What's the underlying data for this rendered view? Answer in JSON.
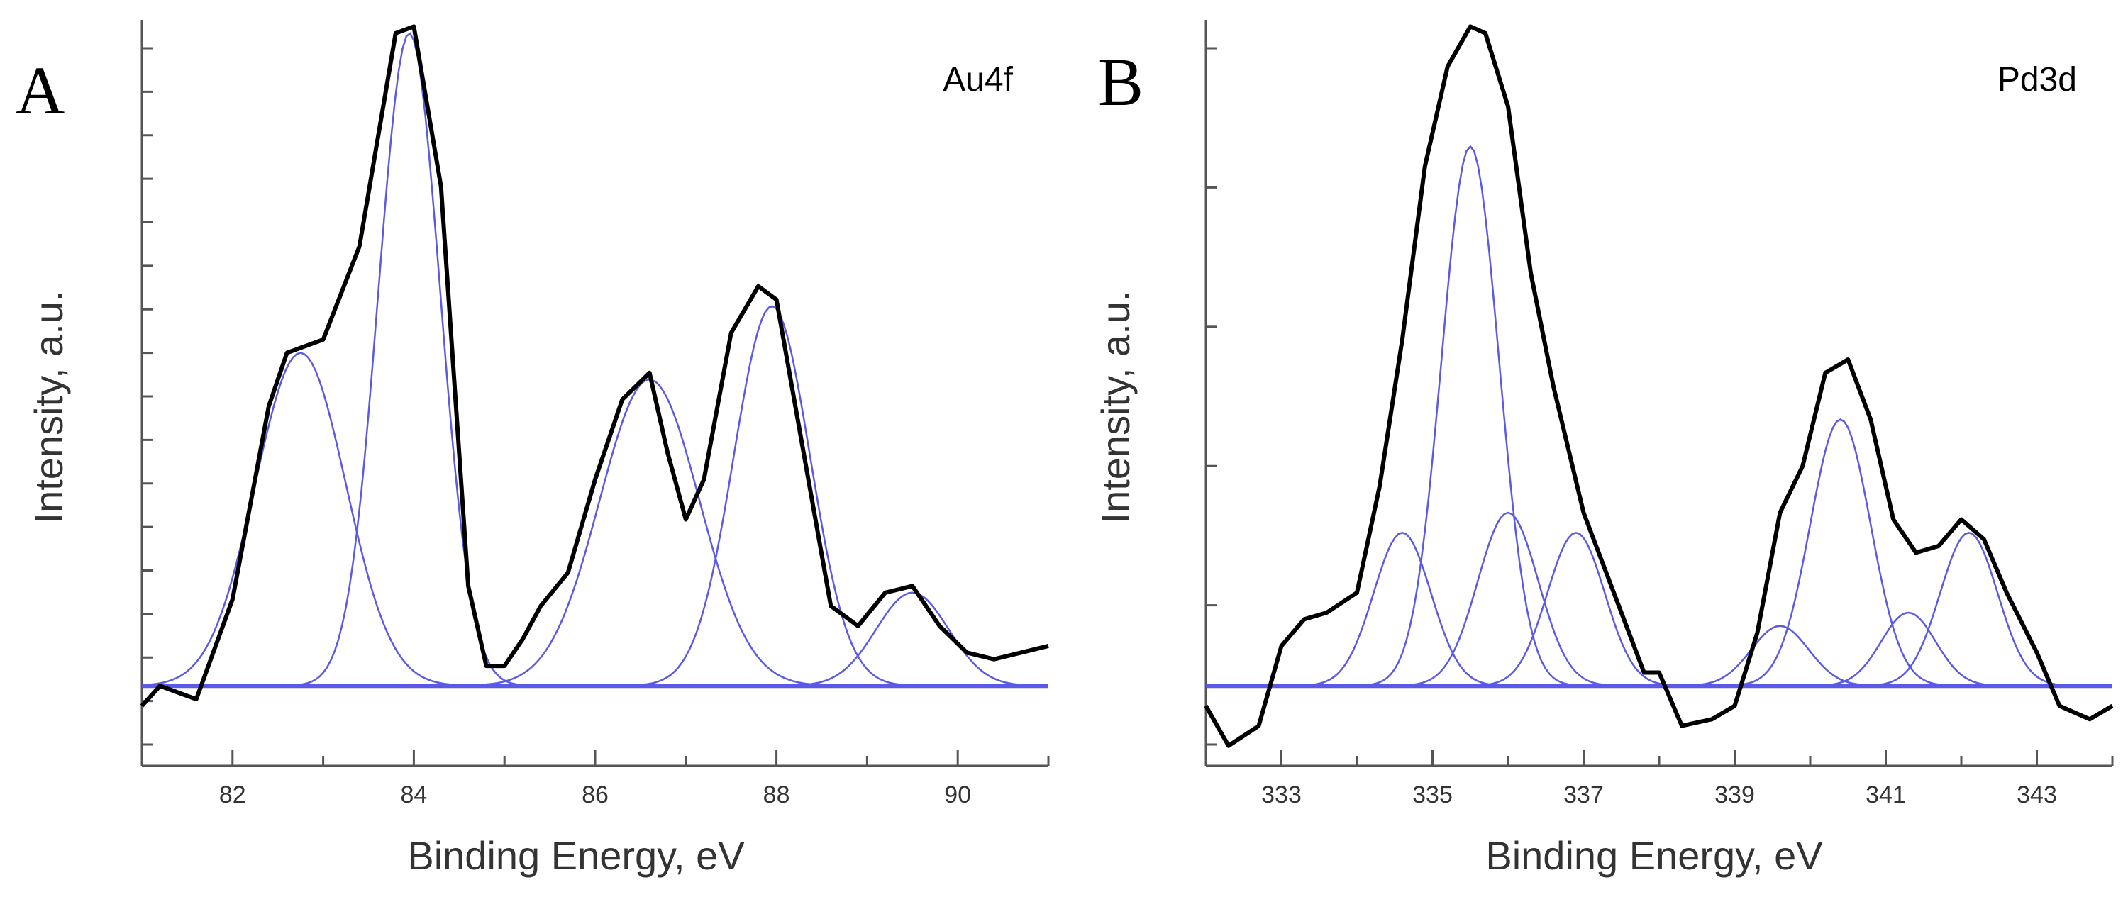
{
  "chart_data": [
    {
      "type": "line",
      "panel_letter": "A",
      "peak_label": "Au4f",
      "xlabel": "Binding Energy, eV",
      "ylabel": "Intensity, a.u.",
      "xlim": [
        81,
        91
      ],
      "ylim": [
        -0.12,
        1.0
      ],
      "x_ticks": [
        82,
        84,
        86,
        88,
        90
      ],
      "baseline": 0,
      "series": [
        {
          "name": "measured",
          "color": "#000000",
          "x": [
            81.0,
            81.2,
            81.6,
            82.0,
            82.4,
            82.6,
            83.0,
            83.4,
            83.8,
            84.0,
            84.3,
            84.6,
            84.8,
            85.0,
            85.2,
            85.4,
            85.7,
            86.0,
            86.3,
            86.6,
            86.8,
            87.0,
            87.2,
            87.5,
            87.8,
            88.0,
            88.3,
            88.6,
            88.9,
            89.2,
            89.5,
            89.8,
            90.1,
            90.4,
            90.7,
            91.0
          ],
          "y": [
            -0.03,
            0.0,
            -0.02,
            0.13,
            0.42,
            0.5,
            0.52,
            0.66,
            0.98,
            0.99,
            0.75,
            0.15,
            0.03,
            0.03,
            0.07,
            0.12,
            0.17,
            0.31,
            0.43,
            0.47,
            0.35,
            0.25,
            0.31,
            0.53,
            0.6,
            0.58,
            0.35,
            0.12,
            0.09,
            0.14,
            0.15,
            0.09,
            0.05,
            0.04,
            0.05,
            0.06
          ]
        },
        {
          "name": "component-1",
          "color": "#5a5ae6",
          "shape": "gaussian",
          "center": 82.75,
          "amplitude": 0.5,
          "width": 0.5
        },
        {
          "name": "component-2",
          "color": "#5a5ae6",
          "shape": "gaussian",
          "center": 83.95,
          "amplitude": 0.98,
          "width": 0.34
        },
        {
          "name": "component-3",
          "color": "#5a5ae6",
          "shape": "gaussian",
          "center": 86.6,
          "amplitude": 0.46,
          "width": 0.55
        },
        {
          "name": "component-4",
          "color": "#5a5ae6",
          "shape": "gaussian",
          "center": 87.95,
          "amplitude": 0.57,
          "width": 0.42
        },
        {
          "name": "component-5",
          "color": "#5a5ae6",
          "shape": "gaussian",
          "center": 89.5,
          "amplitude": 0.14,
          "width": 0.4
        }
      ]
    },
    {
      "type": "line",
      "panel_letter": "B",
      "peak_label": "Pd3d",
      "xlabel": "Binding Energy, eV",
      "ylabel": "Intensity, a.u.",
      "xlim": [
        332,
        344
      ],
      "ylim": [
        -0.12,
        1.0
      ],
      "x_ticks": [
        333,
        335,
        337,
        339,
        341,
        343
      ],
      "baseline": 0,
      "series": [
        {
          "name": "measured",
          "color": "#000000",
          "x": [
            332.0,
            332.3,
            332.7,
            333.0,
            333.3,
            333.6,
            334.0,
            334.3,
            334.6,
            334.9,
            335.2,
            335.5,
            335.7,
            336.0,
            336.3,
            336.6,
            337.0,
            337.4,
            337.8,
            338.0,
            338.3,
            338.7,
            339.0,
            339.3,
            339.6,
            339.9,
            340.2,
            340.5,
            340.8,
            341.1,
            341.4,
            341.7,
            342.0,
            342.3,
            342.6,
            343.0,
            343.3,
            343.7,
            344.0
          ],
          "y": [
            -0.03,
            -0.09,
            -0.06,
            0.06,
            0.1,
            0.11,
            0.14,
            0.3,
            0.52,
            0.78,
            0.93,
            0.99,
            0.98,
            0.87,
            0.62,
            0.45,
            0.26,
            0.14,
            0.02,
            0.02,
            -0.06,
            -0.05,
            -0.03,
            0.08,
            0.26,
            0.33,
            0.47,
            0.49,
            0.4,
            0.25,
            0.2,
            0.21,
            0.25,
            0.22,
            0.14,
            0.05,
            -0.03,
            -0.05,
            -0.03
          ]
        },
        {
          "name": "component-1",
          "color": "#5a5ae6",
          "shape": "gaussian",
          "center": 334.6,
          "amplitude": 0.23,
          "width": 0.38
        },
        {
          "name": "component-2",
          "color": "#5a5ae6",
          "shape": "gaussian",
          "center": 335.5,
          "amplitude": 0.81,
          "width": 0.38
        },
        {
          "name": "component-3",
          "color": "#5a5ae6",
          "shape": "gaussian",
          "center": 336.0,
          "amplitude": 0.26,
          "width": 0.4
        },
        {
          "name": "component-4",
          "color": "#5a5ae6",
          "shape": "gaussian",
          "center": 336.9,
          "amplitude": 0.23,
          "width": 0.38
        },
        {
          "name": "component-5",
          "color": "#5a5ae6",
          "shape": "gaussian",
          "center": 339.6,
          "amplitude": 0.09,
          "width": 0.38
        },
        {
          "name": "component-6",
          "color": "#5a5ae6",
          "shape": "gaussian",
          "center": 340.4,
          "amplitude": 0.4,
          "width": 0.4
        },
        {
          "name": "component-7",
          "color": "#5a5ae6",
          "shape": "gaussian",
          "center": 341.3,
          "amplitude": 0.11,
          "width": 0.36
        },
        {
          "name": "component-8",
          "color": "#5a5ae6",
          "shape": "gaussian",
          "center": 342.1,
          "amplitude": 0.23,
          "width": 0.38
        }
      ]
    }
  ]
}
